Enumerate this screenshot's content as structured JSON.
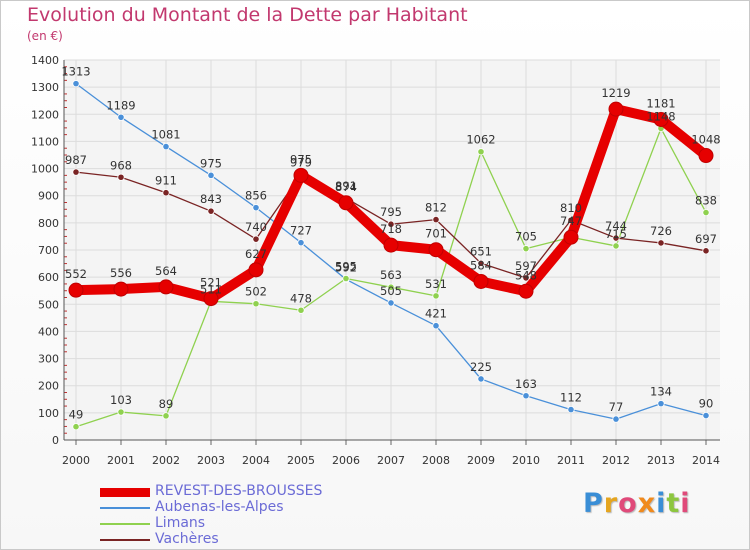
{
  "header": {
    "title": "Evolution du Montant de la Dette par Habitant",
    "subtitle": "(en €)"
  },
  "logo": {
    "letters": [
      "P",
      "r",
      "o",
      "x",
      "i",
      "t",
      "i"
    ],
    "colors": [
      "#3a8ed6",
      "#e5a51f",
      "#e04a7a",
      "#f08a1d",
      "#3a8ed6",
      "#8dc63f",
      "#e04a7a"
    ]
  },
  "chart_data": {
    "type": "line",
    "title": "Evolution du Montant de la Dette par Habitant",
    "subtitle": "(en €)",
    "x": [
      "2000",
      "2001",
      "2002",
      "2003",
      "2004",
      "2005",
      "2006",
      "2007",
      "2008",
      "2009",
      "2010",
      "2011",
      "2012",
      "2013",
      "2014"
    ],
    "ylim": [
      0,
      1400
    ],
    "yticks": [
      0,
      100,
      200,
      300,
      400,
      500,
      600,
      700,
      800,
      900,
      1000,
      1100,
      1200,
      1300,
      1400
    ],
    "grid": true,
    "legend_position": "bottom-left",
    "series": [
      {
        "name": "REVEST-DES-BROUSSES",
        "color": "#e60000",
        "values": [
          552,
          556,
          564,
          521,
          627,
          975,
          874,
          718,
          701,
          584,
          548,
          747,
          1219,
          1181,
          1048
        ],
        "labels": [
          "552",
          "556",
          "564",
          "521",
          "627",
          "975",
          "874",
          "718",
          "701",
          "584",
          "548",
          "747",
          "1219",
          "1181",
          "1048"
        ]
      },
      {
        "name": "Aubenas-les-Alpes",
        "color": "#4a90d9",
        "values": [
          1313,
          1189,
          1081,
          975,
          856,
          727,
          592,
          505,
          421,
          225,
          163,
          112,
          77,
          134,
          90
        ],
        "labels": [
          "1313",
          "1189",
          "1081",
          "975",
          "856",
          "727",
          "592",
          "505",
          "421",
          "225",
          "163",
          "112",
          "77",
          "134",
          "90"
        ]
      },
      {
        "name": "Limans",
        "color": "#8fd14f",
        "values": [
          49,
          103,
          89,
          511,
          502,
          478,
          595,
          563,
          531,
          1062,
          705,
          747,
          715,
          1148,
          838
        ],
        "labels": [
          "49",
          "103",
          "89",
          "511",
          "502",
          "478",
          "595",
          "563",
          "531",
          "1062",
          "705",
          "",
          "715",
          "1148",
          "838"
        ]
      },
      {
        "name": "Vachères",
        "color": "#7a2424",
        "values": [
          987,
          968,
          911,
          843,
          740,
          979,
          891,
          795,
          812,
          651,
          597,
          810,
          744,
          726,
          697
        ],
        "labels": [
          "987",
          "968",
          "911",
          "843",
          "740",
          "979",
          "891",
          "795",
          "812",
          "651",
          "597",
          "810",
          "744",
          "726",
          "697"
        ]
      }
    ]
  }
}
